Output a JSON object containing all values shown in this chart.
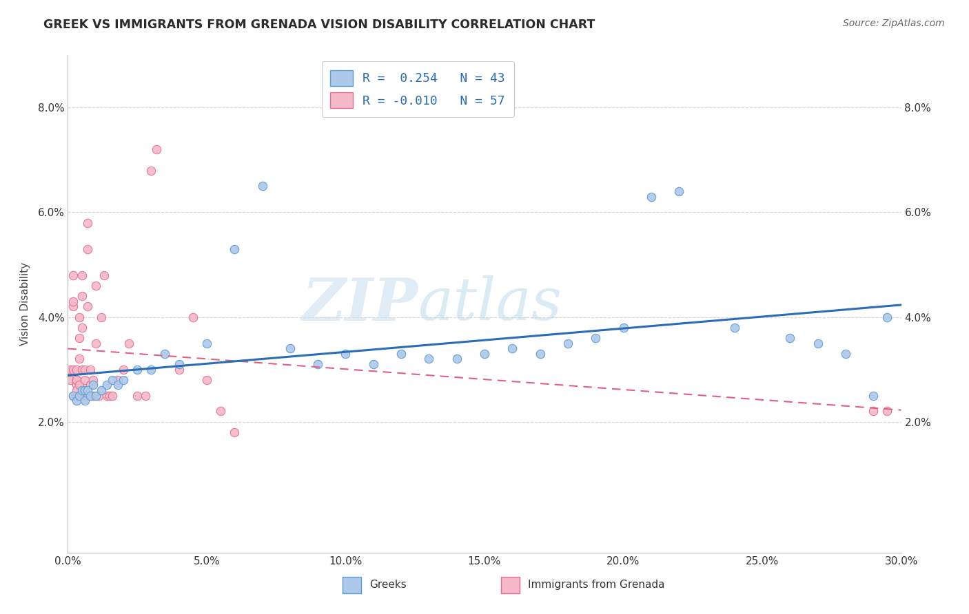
{
  "title": "GREEK VS IMMIGRANTS FROM GRENADA VISION DISABILITY CORRELATION CHART",
  "source_text": "Source: ZipAtlas.com",
  "ylabel": "Vision Disability",
  "xlim": [
    0.0,
    0.3
  ],
  "ylim": [
    -0.005,
    0.09
  ],
  "xtick_labels": [
    "0.0%",
    "",
    "",
    "",
    "",
    "",
    "",
    "",
    "",
    "",
    "5.0%",
    "",
    "",
    "",
    "",
    "",
    "",
    "",
    "",
    "",
    "10.0%",
    "",
    "",
    "",
    "",
    "",
    "",
    "",
    "",
    "",
    "15.0%",
    "",
    "",
    "",
    "",
    "",
    "",
    "",
    "",
    "",
    "20.0%",
    "",
    "",
    "",
    "",
    "",
    "",
    "",
    "",
    "",
    "25.0%",
    "",
    "",
    "",
    "",
    "",
    "",
    "",
    "",
    "",
    "30.0%"
  ],
  "xtick_vals_major": [
    0.0,
    0.05,
    0.1,
    0.15,
    0.2,
    0.25,
    0.3
  ],
  "ytick_vals": [
    0.02,
    0.04,
    0.06,
    0.08
  ],
  "ytick_labels": [
    "2.0%",
    "4.0%",
    "6.0%",
    "8.0%"
  ],
  "blue_scatter_color": "#adc8e8",
  "blue_edge_color": "#5b9bd5",
  "pink_scatter_color": "#f4b8c8",
  "pink_edge_color": "#e07090",
  "blue_line_color": "#2a6db5",
  "pink_line_color": "#e06080",
  "watermark_zip": "ZIP",
  "watermark_atlas": "atlas",
  "blue_x": [
    0.002,
    0.003,
    0.004,
    0.005,
    0.006,
    0.006,
    0.007,
    0.008,
    0.009,
    0.01,
    0.012,
    0.014,
    0.016,
    0.018,
    0.02,
    0.025,
    0.03,
    0.035,
    0.04,
    0.05,
    0.06,
    0.07,
    0.08,
    0.09,
    0.1,
    0.11,
    0.12,
    0.13,
    0.14,
    0.15,
    0.16,
    0.17,
    0.18,
    0.19,
    0.2,
    0.21,
    0.22,
    0.24,
    0.26,
    0.27,
    0.28,
    0.29,
    0.295
  ],
  "blue_y": [
    0.025,
    0.024,
    0.025,
    0.026,
    0.024,
    0.026,
    0.026,
    0.025,
    0.027,
    0.025,
    0.026,
    0.027,
    0.028,
    0.027,
    0.028,
    0.03,
    0.03,
    0.033,
    0.031,
    0.035,
    0.053,
    0.065,
    0.034,
    0.031,
    0.033,
    0.031,
    0.033,
    0.032,
    0.032,
    0.033,
    0.034,
    0.033,
    0.035,
    0.036,
    0.038,
    0.063,
    0.064,
    0.038,
    0.036,
    0.035,
    0.033,
    0.025,
    0.04
  ],
  "pink_x": [
    0.001,
    0.001,
    0.002,
    0.002,
    0.002,
    0.002,
    0.002,
    0.003,
    0.003,
    0.003,
    0.003,
    0.003,
    0.003,
    0.004,
    0.004,
    0.004,
    0.004,
    0.004,
    0.005,
    0.005,
    0.005,
    0.005,
    0.005,
    0.006,
    0.006,
    0.006,
    0.006,
    0.007,
    0.007,
    0.007,
    0.007,
    0.008,
    0.008,
    0.009,
    0.009,
    0.01,
    0.01,
    0.011,
    0.012,
    0.013,
    0.014,
    0.015,
    0.016,
    0.018,
    0.02,
    0.022,
    0.025,
    0.028,
    0.03,
    0.032,
    0.04,
    0.045,
    0.05,
    0.055,
    0.06,
    0.29,
    0.295
  ],
  "pink_y": [
    0.03,
    0.028,
    0.042,
    0.048,
    0.043,
    0.03,
    0.025,
    0.027,
    0.03,
    0.025,
    0.028,
    0.026,
    0.028,
    0.036,
    0.04,
    0.032,
    0.025,
    0.027,
    0.038,
    0.044,
    0.048,
    0.025,
    0.03,
    0.025,
    0.03,
    0.028,
    0.026,
    0.053,
    0.058,
    0.042,
    0.025,
    0.027,
    0.03,
    0.025,
    0.028,
    0.035,
    0.046,
    0.025,
    0.04,
    0.048,
    0.025,
    0.025,
    0.025,
    0.028,
    0.03,
    0.035,
    0.025,
    0.025,
    0.068,
    0.072,
    0.03,
    0.04,
    0.028,
    0.022,
    0.018,
    0.022,
    0.022
  ],
  "legend1_text": "R =  0.254   N = 43",
  "legend2_text": "R = -0.010   N = 57"
}
